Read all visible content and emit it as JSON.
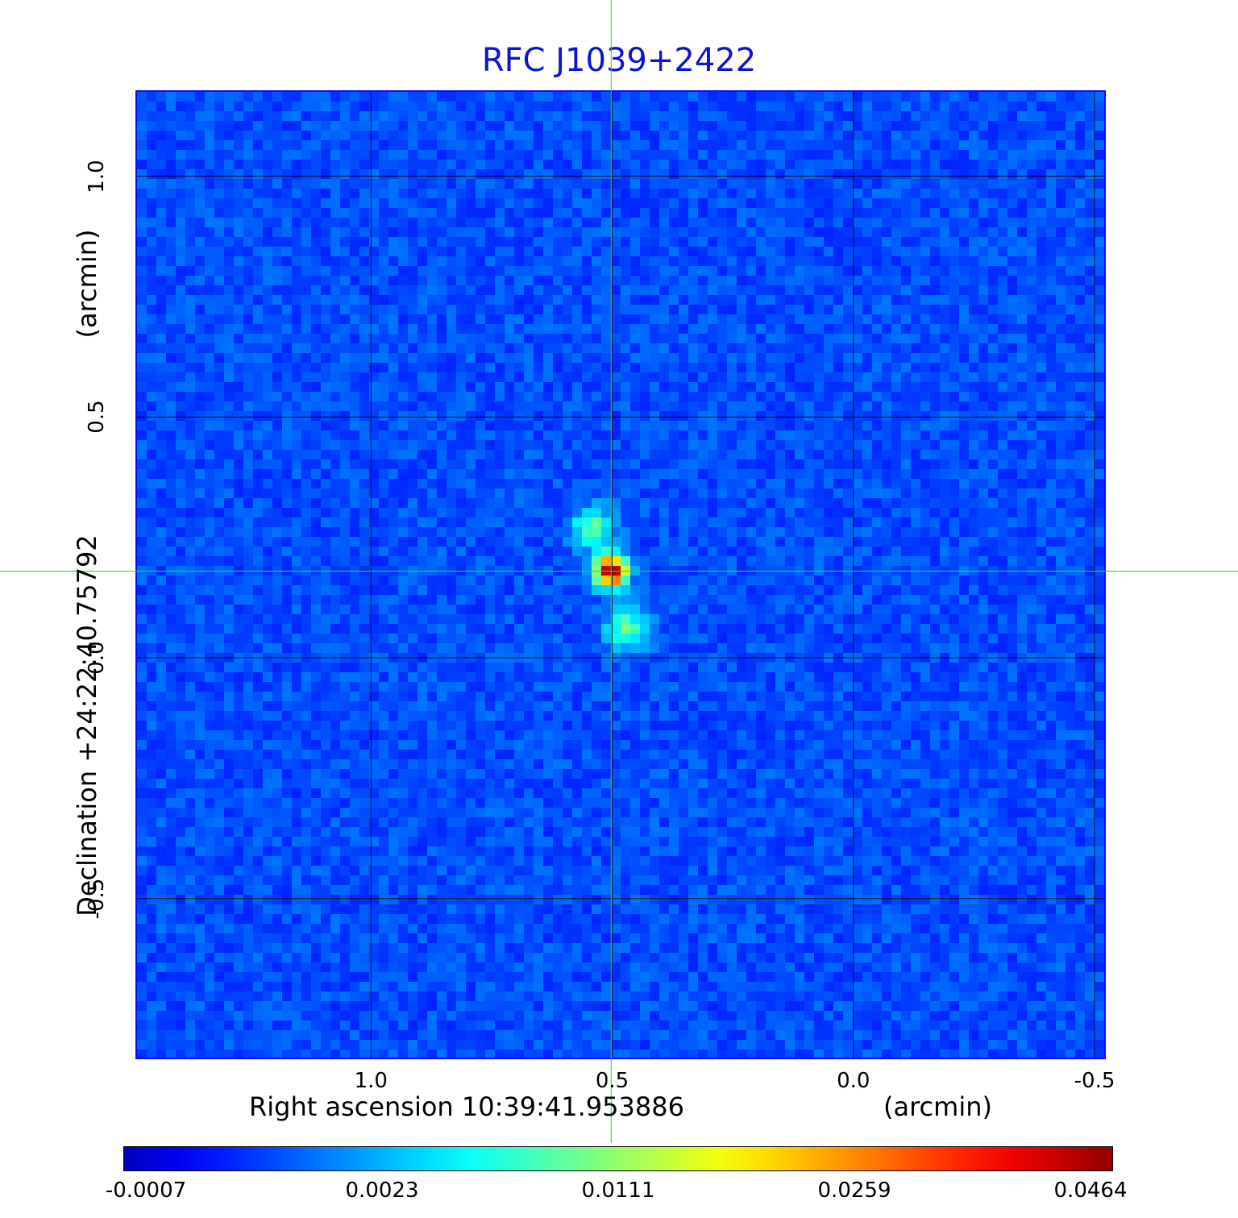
{
  "chart_data": {
    "type": "heatmap",
    "title": "RFC J1039+2422",
    "xlabel": "Right ascension  10:39:41.953886",
    "xunit": "(arcmin)",
    "ylabel": "Declination  +24:22:40.75792",
    "yunit": "(arcmin)",
    "x_ticks": [
      "1.0",
      "0.5",
      "0.0",
      "-0.5"
    ],
    "y_ticks": [
      "1.0",
      "0.5",
      "0.0",
      "-0.5"
    ],
    "x_tick_values": [
      1.0,
      0.5,
      0.0,
      -0.5
    ],
    "y_tick_values": [
      1.0,
      0.5,
      0.0,
      -0.5
    ],
    "xlim": [
      1.485,
      -0.52
    ],
    "ylim": [
      -0.83,
      1.175
    ],
    "grid": true,
    "colormap": "jet",
    "colorbar_ticks": [
      "-0.0007",
      "0.0023",
      "0.0111",
      "0.0259",
      "0.0464"
    ],
    "colorbar_values": [
      -0.0007,
      0.0023,
      0.0111,
      0.0259,
      0.0464
    ],
    "crosshair": {
      "x": 0.502,
      "y": 0.18
    },
    "sources": [
      {
        "x": 0.502,
        "y": 0.18,
        "value": 0.0464
      },
      {
        "x": 0.54,
        "y": 0.27,
        "value": 0.004
      },
      {
        "x": 0.47,
        "y": 0.06,
        "value": 0.004
      }
    ],
    "crosshair_color": "#22dd22",
    "grid_color": "#000000",
    "title_color": "#0a14d2"
  }
}
